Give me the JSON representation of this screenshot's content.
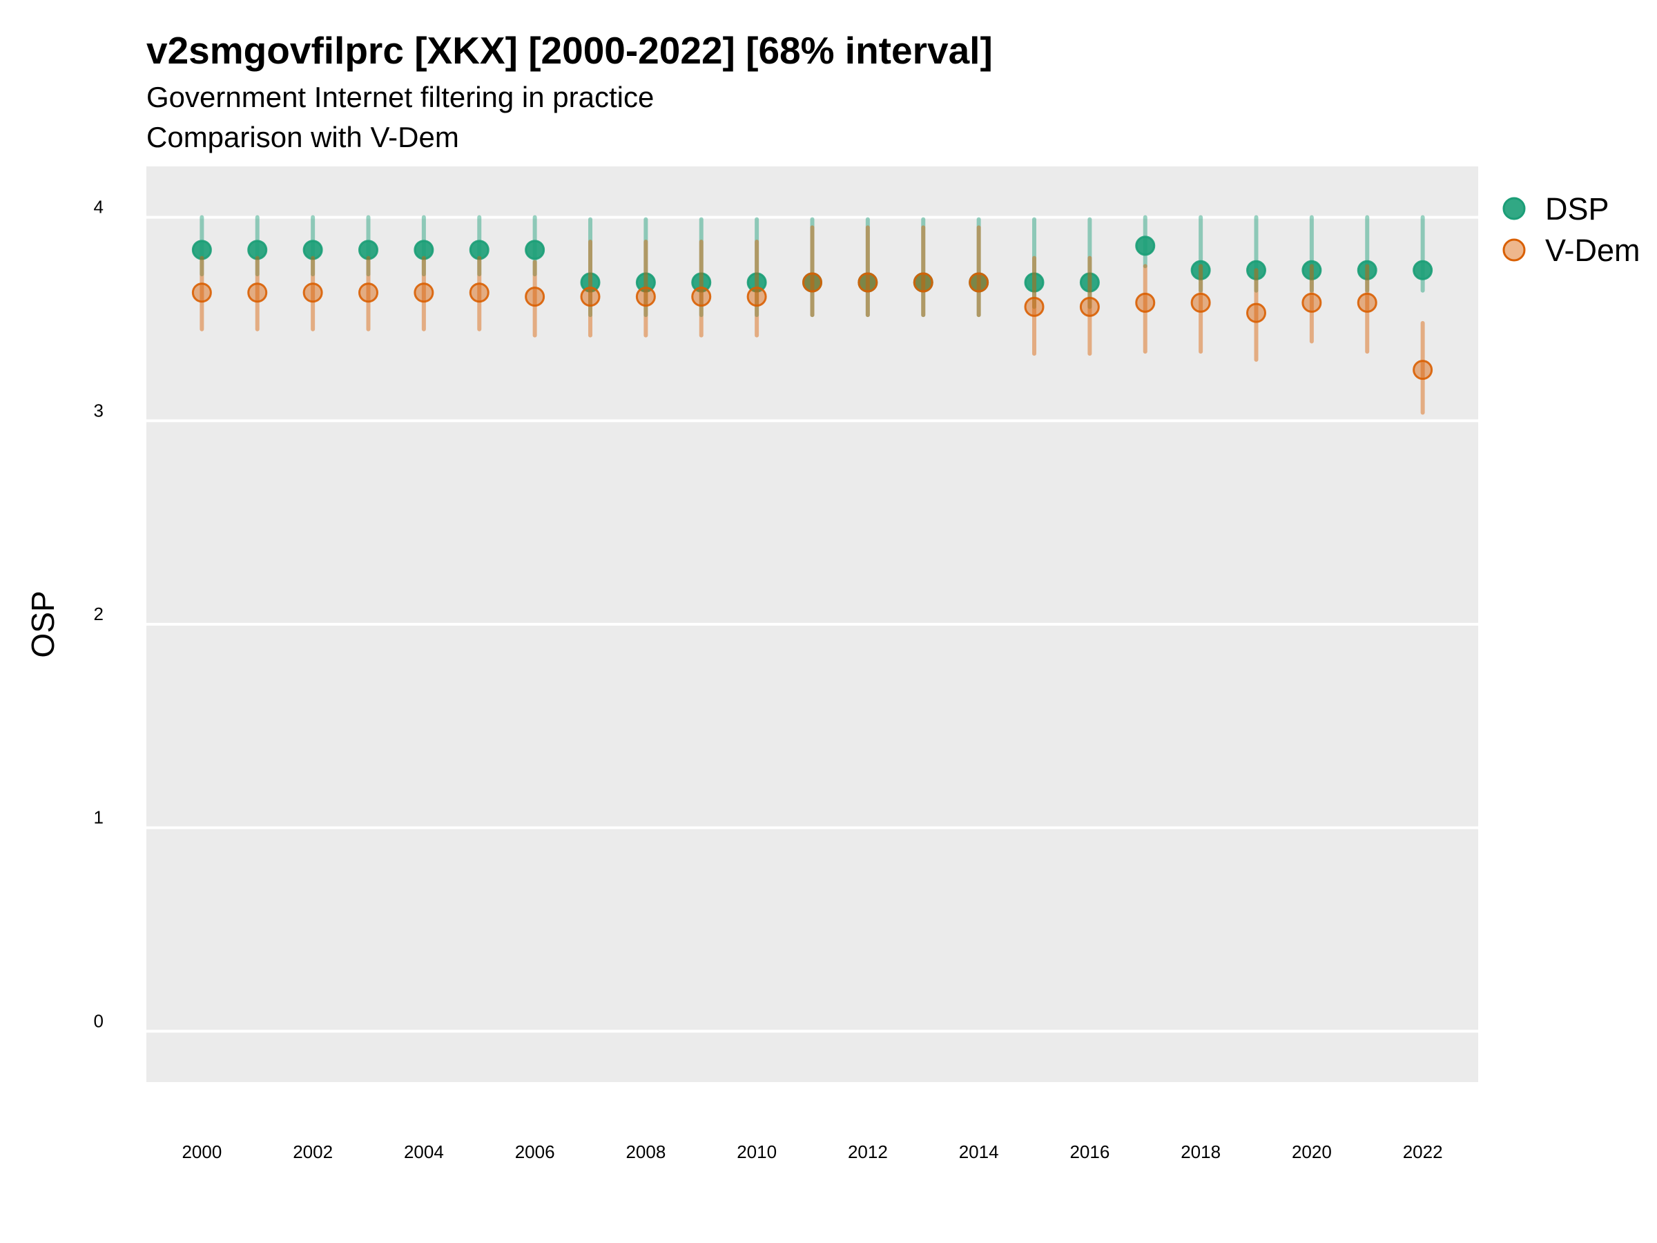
{
  "chart_data": {
    "type": "scatter",
    "title": "v2smgovfilprc [XKX] [2000-2022] [68% interval]",
    "subtitle_lines": [
      "Government Internet filtering in practice",
      "Comparison with V-Dem"
    ],
    "xlabel": "",
    "ylabel": "OSP",
    "xlim": [
      1999.0,
      2023.0
    ],
    "ylim": [
      -0.25,
      4.25
    ],
    "x_ticks": [
      2000,
      2002,
      2004,
      2006,
      2008,
      2010,
      2012,
      2014,
      2016,
      2018,
      2020,
      2022
    ],
    "y_ticks": [
      0,
      1,
      2,
      3,
      4
    ],
    "grid": true,
    "legend_position": "right",
    "x": [
      2000,
      2001,
      2002,
      2003,
      2004,
      2005,
      2006,
      2007,
      2008,
      2009,
      2010,
      2011,
      2012,
      2013,
      2014,
      2015,
      2016,
      2017,
      2018,
      2019,
      2020,
      2021,
      2022
    ],
    "series": [
      {
        "name": "DSP",
        "color": "#1b9e77",
        "values": [
          3.84,
          3.84,
          3.84,
          3.84,
          3.84,
          3.84,
          3.84,
          3.68,
          3.68,
          3.68,
          3.68,
          3.68,
          3.68,
          3.68,
          3.68,
          3.68,
          3.68,
          3.86,
          3.74,
          3.74,
          3.74,
          3.74,
          3.74
        ],
        "lower": [
          3.72,
          3.72,
          3.72,
          3.72,
          3.72,
          3.72,
          3.72,
          3.52,
          3.52,
          3.52,
          3.52,
          3.52,
          3.52,
          3.52,
          3.52,
          3.56,
          3.56,
          3.76,
          3.64,
          3.64,
          3.64,
          3.64,
          3.64
        ],
        "upper": [
          4.0,
          4.0,
          4.0,
          4.0,
          4.0,
          4.0,
          4.0,
          3.99,
          3.99,
          3.99,
          3.99,
          3.99,
          3.99,
          3.99,
          3.99,
          3.99,
          3.99,
          4.0,
          4.0,
          4.0,
          4.0,
          4.0,
          4.0
        ]
      },
      {
        "name": "V-Dem",
        "color": "#d95f02",
        "values": [
          3.63,
          3.63,
          3.63,
          3.63,
          3.63,
          3.63,
          3.61,
          3.61,
          3.61,
          3.61,
          3.61,
          3.68,
          3.68,
          3.68,
          3.68,
          3.56,
          3.56,
          3.58,
          3.58,
          3.53,
          3.58,
          3.58,
          3.25
        ],
        "lower": [
          3.45,
          3.45,
          3.45,
          3.45,
          3.45,
          3.45,
          3.42,
          3.42,
          3.42,
          3.42,
          3.42,
          3.52,
          3.52,
          3.52,
          3.52,
          3.33,
          3.33,
          3.34,
          3.34,
          3.3,
          3.39,
          3.34,
          3.04
        ],
        "upper": [
          3.8,
          3.8,
          3.8,
          3.8,
          3.8,
          3.8,
          3.78,
          3.88,
          3.88,
          3.88,
          3.88,
          3.95,
          3.95,
          3.95,
          3.95,
          3.8,
          3.8,
          3.76,
          3.76,
          3.74,
          3.76,
          3.76,
          3.48
        ]
      }
    ]
  }
}
